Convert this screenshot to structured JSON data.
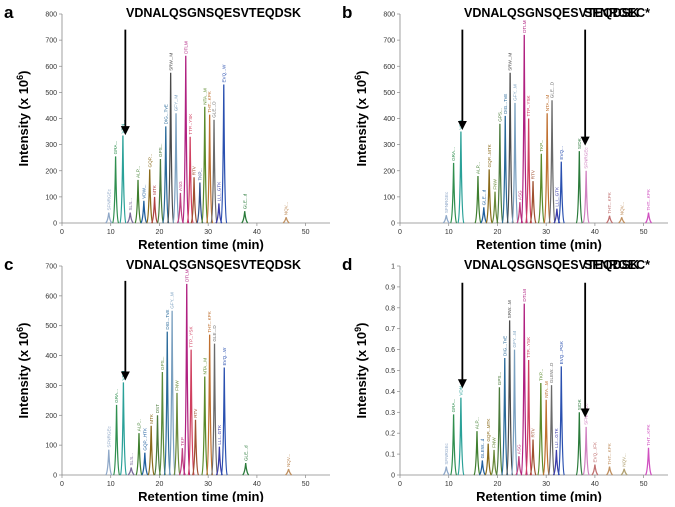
{
  "figure": {
    "description_free": true
  },
  "chart_data": [
    {
      "type": "line",
      "panel_label": "a",
      "peptide_label": "VDNALQSGNSQESVTEQDSK",
      "second_label": "",
      "xlabel": "Retention time (min)",
      "ylabel": "Intensity (x 10",
      "ylabel_exp": "6",
      "xlim": [
        0,
        55
      ],
      "ylim": [
        0,
        800
      ],
      "xticks": [
        0,
        10,
        20,
        30,
        40,
        50
      ],
      "yticks": [
        0,
        100,
        200,
        300,
        400,
        500,
        600,
        700,
        800
      ],
      "arrows": [
        {
          "x": 13.0,
          "y_start": 740,
          "y_end": 340
        }
      ],
      "peaks": [
        {
          "x": 9.6,
          "h": 40,
          "c": "#8fa8c8",
          "label": "SFNRGEc"
        },
        {
          "x": 11.0,
          "h": 255,
          "c": "#2f8f4f",
          "label": "GRA..."
        },
        {
          "x": 12.5,
          "h": 335,
          "c": "#2aa198",
          "label": "VDN..."
        },
        {
          "x": 14.0,
          "h": 40,
          "c": "#7a6a9a",
          "label": "SLS..."
        },
        {
          "x": 15.6,
          "h": 165,
          "c": "#3f7f2f",
          "label": "ALP..."
        },
        {
          "x": 16.8,
          "h": 85,
          "c": "#1f5f9f",
          "label": "VDW..."
        },
        {
          "x": 18.0,
          "h": 205,
          "c": "#8a6a1a",
          "label": "GQP..."
        },
        {
          "x": 19.0,
          "h": 100,
          "c": "#b04040",
          "label": "MTK"
        },
        {
          "x": 20.2,
          "h": 245,
          "c": "#4a7a3a",
          "label": "GPS..."
        },
        {
          "x": 21.3,
          "h": 370,
          "c": "#2a6a9a",
          "label": "DIG...TvE"
        },
        {
          "x": 22.3,
          "h": 575,
          "c": "#4a4a4a",
          "label": "SRW...M"
        },
        {
          "x": 23.4,
          "h": 420,
          "c": "#7aa0c0",
          "label": "GFY...M"
        },
        {
          "x": 24.3,
          "h": 115,
          "c": "#c04080",
          "label": "ASG"
        },
        {
          "x": 25.4,
          "h": 640,
          "c": "#b02080",
          "label": "DTLM"
        },
        {
          "x": 26.3,
          "h": 330,
          "c": "#d04060",
          "label": "TTP...YSK"
        },
        {
          "x": 27.1,
          "h": 175,
          "c": "#a05030",
          "label": "RTV"
        },
        {
          "x": 28.3,
          "h": 155,
          "c": "#30508a",
          "label": "TKP..."
        },
        {
          "x": 29.3,
          "h": 445,
          "c": "#5a8a2a",
          "label": "NTA...M"
        },
        {
          "x": 30.3,
          "h": 415,
          "c": "#c07030",
          "label": "THT...KPK"
        },
        {
          "x": 31.2,
          "h": 395,
          "c": "#6a6a6a",
          "label": "GLE...D"
        },
        {
          "x": 32.2,
          "h": 75,
          "c": "#3a3aaa",
          "label": "LLI...GTK"
        },
        {
          "x": 33.2,
          "h": 530,
          "c": "#2a50b0",
          "label": "EVQ...W"
        },
        {
          "x": 37.5,
          "h": 45,
          "c": "#2a7a3a",
          "label": "GLE...d"
        },
        {
          "x": 46.0,
          "h": 22,
          "c": "#c09060",
          "label": "NQV..."
        }
      ]
    },
    {
      "type": "line",
      "panel_label": "b",
      "peptide_label": "VDNALQSGNSQESVTEQDSK",
      "second_label": "SFNRGEC*",
      "xlabel": "Retention time (min)",
      "ylabel": "Intensity (x 10",
      "ylabel_exp": "6",
      "xlim": [
        0,
        55
      ],
      "ylim": [
        0,
        800
      ],
      "xticks": [
        0,
        10,
        20,
        30,
        40,
        50
      ],
      "yticks": [
        0,
        100,
        200,
        300,
        400,
        500,
        600,
        700,
        800
      ],
      "arrows": [
        {
          "x": 12.8,
          "y_start": 740,
          "y_end": 360
        },
        {
          "x": 38.0,
          "y_start": 740,
          "y_end": 300
        }
      ],
      "peaks": [
        {
          "x": 9.5,
          "h": 30,
          "c": "#8fa8c8",
          "label": "SFNRGEc"
        },
        {
          "x": 11.0,
          "h": 230,
          "c": "#2f8f4f",
          "label": "GRA..."
        },
        {
          "x": 12.5,
          "h": 350,
          "c": "#2aa198",
          "label": "VDN..."
        },
        {
          "x": 16.0,
          "h": 180,
          "c": "#3f7f2f",
          "label": "ALP..."
        },
        {
          "x": 17.2,
          "h": 60,
          "c": "#1f5f9f",
          "label": "GLE...d"
        },
        {
          "x": 18.3,
          "h": 205,
          "c": "#8a6a1a",
          "label": "GQP...MTK"
        },
        {
          "x": 19.5,
          "h": 120,
          "c": "#6a8a3a",
          "label": "FNW"
        },
        {
          "x": 20.5,
          "h": 380,
          "c": "#4a7a3a",
          "label": "GPS..."
        },
        {
          "x": 21.6,
          "h": 410,
          "c": "#2a6a9a",
          "label": "DIG...TvE"
        },
        {
          "x": 22.6,
          "h": 575,
          "c": "#4a4a4a",
          "label": "SRW...M"
        },
        {
          "x": 23.6,
          "h": 460,
          "c": "#7aa0c0",
          "label": "GFY...M"
        },
        {
          "x": 24.6,
          "h": 80,
          "c": "#c04080",
          "label": "ASG"
        },
        {
          "x": 25.5,
          "h": 720,
          "c": "#b02080",
          "label": "DTLM"
        },
        {
          "x": 26.4,
          "h": 400,
          "c": "#d04060",
          "label": "TTP...YSK"
        },
        {
          "x": 27.3,
          "h": 160,
          "c": "#a05030",
          "label": "RTV"
        },
        {
          "x": 29.0,
          "h": 265,
          "c": "#5a8a2a",
          "label": "TKP..."
        },
        {
          "x": 30.2,
          "h": 420,
          "c": "#c07030",
          "label": "NTA...M"
        },
        {
          "x": 31.2,
          "h": 470,
          "c": "#6a6a6a",
          "label": "GLE...D"
        },
        {
          "x": 32.2,
          "h": 55,
          "c": "#3a3aaa",
          "label": "LLI...GTK"
        },
        {
          "x": 33.1,
          "h": 235,
          "c": "#2a50b0",
          "label": "EVQ..."
        },
        {
          "x": 36.8,
          "h": 275,
          "c": "#2a7a3a",
          "label": "SrDK"
        },
        {
          "x": 38.2,
          "h": 200,
          "c": "#d080c0",
          "label": "SFNRGEc"
        },
        {
          "x": 43.0,
          "h": 28,
          "c": "#c07070",
          "label": "THT...KPK"
        },
        {
          "x": 45.5,
          "h": 22,
          "c": "#c09060",
          "label": "NQV..."
        },
        {
          "x": 51.0,
          "h": 40,
          "c": "#d050c0",
          "label": "THT...KPK"
        }
      ]
    },
    {
      "type": "line",
      "panel_label": "c",
      "peptide_label": "VDNALQSGNSQESVTEQDSK",
      "second_label": "",
      "xlabel": "Retention time (min)",
      "ylabel": "Intensity (x 10",
      "ylabel_exp": "6",
      "xlim": [
        0,
        55
      ],
      "ylim": [
        0,
        700
      ],
      "xticks": [
        0,
        10,
        20,
        30,
        40,
        50
      ],
      "yticks": [
        0,
        100,
        200,
        300,
        400,
        500,
        600,
        700
      ],
      "arrows": [
        {
          "x": 13.0,
          "y_start": 650,
          "y_end": 320
        }
      ],
      "peaks": [
        {
          "x": 9.6,
          "h": 85,
          "c": "#8fa8c8",
          "label": "SFNRGEc"
        },
        {
          "x": 11.2,
          "h": 235,
          "c": "#2f8f4f",
          "label": "GRA..."
        },
        {
          "x": 12.6,
          "h": 310,
          "c": "#2aa198",
          "label": "VDN..."
        },
        {
          "x": 14.2,
          "h": 25,
          "c": "#7a6a9a",
          "label": "SLS..."
        },
        {
          "x": 15.8,
          "h": 140,
          "c": "#3f7f2f",
          "label": "ALP..."
        },
        {
          "x": 17.0,
          "h": 75,
          "c": "#1f5f9f",
          "label": "GQP...HTK"
        },
        {
          "x": 18.3,
          "h": 165,
          "c": "#8a6a1a",
          "label": "MTK"
        },
        {
          "x": 19.6,
          "h": 200,
          "c": "#4a7a3a",
          "label": "DST"
        },
        {
          "x": 20.6,
          "h": 345,
          "c": "#5a8a3a",
          "label": "GPS..."
        },
        {
          "x": 21.6,
          "h": 480,
          "c": "#2a6a9a",
          "label": "DIG...TvE"
        },
        {
          "x": 22.6,
          "h": 550,
          "c": "#7aa0c0",
          "label": "GFY...M"
        },
        {
          "x": 23.6,
          "h": 275,
          "c": "#6a8a3a",
          "label": "FNW"
        },
        {
          "x": 24.7,
          "h": 90,
          "c": "#c04080",
          "label": "TKP"
        },
        {
          "x": 25.6,
          "h": 640,
          "c": "#b02080",
          "label": "DTLM"
        },
        {
          "x": 26.5,
          "h": 420,
          "c": "#d04060",
          "label": "TTP...YSK"
        },
        {
          "x": 27.4,
          "h": 185,
          "c": "#a05030",
          "label": "RTV"
        },
        {
          "x": 29.3,
          "h": 330,
          "c": "#5a8a2a",
          "label": "NTA...M"
        },
        {
          "x": 30.3,
          "h": 470,
          "c": "#c07030",
          "label": "THT...KPK"
        },
        {
          "x": 31.3,
          "h": 440,
          "c": "#6a6a6a",
          "label": "GLE...D"
        },
        {
          "x": 32.3,
          "h": 95,
          "c": "#3a3aaa",
          "label": "LLI...GTK"
        },
        {
          "x": 33.3,
          "h": 360,
          "c": "#2a50b0",
          "label": "EVQ...W"
        },
        {
          "x": 37.7,
          "h": 40,
          "c": "#2a7a3a",
          "label": "GLE...d"
        },
        {
          "x": 46.5,
          "h": 20,
          "c": "#c09060",
          "label": "NQV..."
        }
      ]
    },
    {
      "type": "line",
      "panel_label": "d",
      "peptide_label": "VDNALQSGNSQESVTEQDSK",
      "second_label": "SFNRGEC*",
      "xlabel": "Retention time (min)",
      "ylabel": "Intensity (x 10",
      "ylabel_exp": "9",
      "xlim": [
        0,
        55
      ],
      "ylim": [
        0,
        1.0
      ],
      "xticks": [
        0,
        10,
        20,
        30,
        40,
        50
      ],
      "yticks": [
        0,
        0.1,
        0.2,
        0.3,
        0.4,
        0.5,
        0.6,
        0.7,
        0.8,
        0.9,
        1
      ],
      "arrows": [
        {
          "x": 12.8,
          "y_start": 0.92,
          "y_end": 0.42
        },
        {
          "x": 38.0,
          "y_start": 0.92,
          "y_end": 0.28
        }
      ],
      "peaks": [
        {
          "x": 9.5,
          "h": 0.04,
          "c": "#8fa8c8",
          "label": "SFNRGEc"
        },
        {
          "x": 11.0,
          "h": 0.29,
          "c": "#2f8f4f",
          "label": "GRA..."
        },
        {
          "x": 12.5,
          "h": 0.37,
          "c": "#2aa198",
          "label": "VDN..."
        },
        {
          "x": 15.8,
          "h": 0.21,
          "c": "#3f7f2f",
          "label": "ALP..."
        },
        {
          "x": 16.9,
          "h": 0.07,
          "c": "#1f5f9f",
          "label": "GLEW...d"
        },
        {
          "x": 18.1,
          "h": 0.15,
          "c": "#8a6a1a",
          "label": "GQP...MTK"
        },
        {
          "x": 19.3,
          "h": 0.12,
          "c": "#6a8a3a",
          "label": "FNW"
        },
        {
          "x": 20.4,
          "h": 0.42,
          "c": "#4a7a3a",
          "label": "GPS..."
        },
        {
          "x": 21.5,
          "h": 0.56,
          "c": "#2a6a9a",
          "label": "DIG...TvE"
        },
        {
          "x": 22.5,
          "h": 0.74,
          "c": "#4a4a4a",
          "label": "SRW...M"
        },
        {
          "x": 23.5,
          "h": 0.6,
          "c": "#7aa0c0",
          "label": "GFY...M"
        },
        {
          "x": 24.4,
          "h": 0.09,
          "c": "#c04080",
          "label": "ASG"
        },
        {
          "x": 25.5,
          "h": 0.82,
          "c": "#b02080",
          "label": "DTLM"
        },
        {
          "x": 26.4,
          "h": 0.55,
          "c": "#d04060",
          "label": "TTP...YSK"
        },
        {
          "x": 27.3,
          "h": 0.17,
          "c": "#a05030",
          "label": "RTV"
        },
        {
          "x": 28.9,
          "h": 0.44,
          "c": "#5a8a2a",
          "label": "TKP..."
        },
        {
          "x": 30.0,
          "h": 0.36,
          "c": "#c07030",
          "label": "NTA...M"
        },
        {
          "x": 31.1,
          "h": 0.43,
          "c": "#6a6a6a",
          "label": "GLEW...D"
        },
        {
          "x": 32.1,
          "h": 0.12,
          "c": "#3a3aaa",
          "label": "LLI...GTK"
        },
        {
          "x": 33.1,
          "h": 0.52,
          "c": "#2a50b0",
          "label": "EVQ...PGK"
        },
        {
          "x": 36.8,
          "h": 0.3,
          "c": "#2a7a3a",
          "label": "SrDK"
        },
        {
          "x": 38.2,
          "h": 0.23,
          "c": "#d080c0",
          "label": "SFNRGEc"
        },
        {
          "x": 40.0,
          "h": 0.05,
          "c": "#c07070",
          "label": "EVQ...IFK"
        },
        {
          "x": 43.0,
          "h": 0.04,
          "c": "#c09060",
          "label": "THT...KPK"
        },
        {
          "x": 46.0,
          "h": 0.03,
          "c": "#b0a070",
          "label": "NQV..."
        },
        {
          "x": 51.0,
          "h": 0.13,
          "c": "#d050c0",
          "label": "THT...KPK"
        }
      ]
    }
  ]
}
